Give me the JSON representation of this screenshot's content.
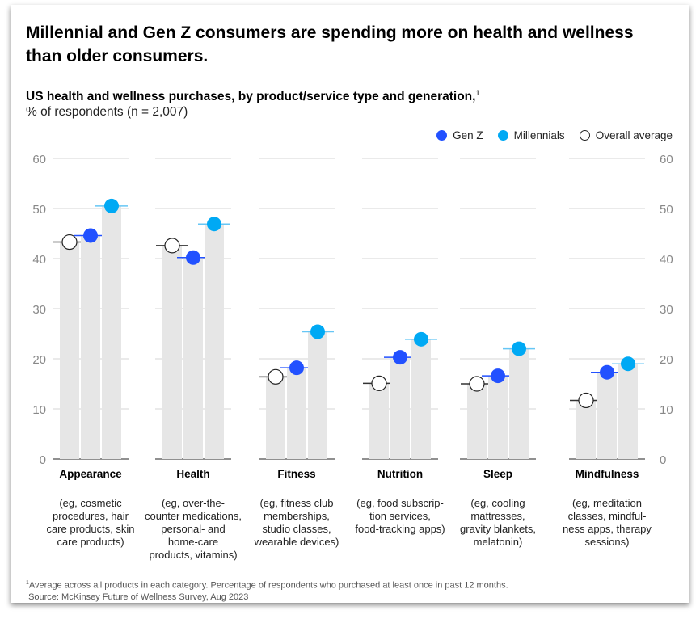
{
  "title": "Millennial and Gen Z consumers are spending more on health and wellness than older consumers.",
  "subtitle": "US health and wellness purchases, by product/service type and generation,",
  "subtitle_note": "1",
  "unit": "% of respondents (n = 2,007)",
  "footnote_mark": "1",
  "footnote": "Average across all products in each category. Percentage of respondents who purchased at least once in past 12 months.",
  "source": "Source: McKinsey Future of Wellness Survey, Aug 2023",
  "chart_data": {
    "type": "bar",
    "categories": [
      "Appearance",
      "Health",
      "Fitness",
      "Nutrition",
      "Sleep",
      "Mindfulness"
    ],
    "descriptions": [
      [
        "(eg, cosmetic",
        "procedures, hair",
        "care products, skin",
        "care products)"
      ],
      [
        "(eg, over-the-",
        "counter medications,",
        "personal- and",
        "home-care",
        "products, vitamins)"
      ],
      [
        "(eg, fitness club",
        "memberships,",
        "studio classes,",
        "wearable devices)"
      ],
      [
        "(eg, food subscrip-",
        "tion services,",
        "food-tracking apps)"
      ],
      [
        "(eg, cooling",
        "mattresses,",
        "gravity blankets,",
        "melatonin)"
      ],
      [
        "(eg, meditation",
        "classes, mindful-",
        "ness apps, therapy",
        "sessions)"
      ]
    ],
    "series": [
      {
        "name": "Overall average",
        "values": [
          43.3,
          42.6,
          16.4,
          15.1,
          15.0,
          11.7
        ],
        "color": "#ffffff",
        "line": "#333333"
      },
      {
        "name": "Gen Z",
        "values": [
          44.6,
          40.2,
          18.2,
          20.3,
          16.6,
          17.3
        ],
        "color": "#2251ff",
        "line": "#2251ff"
      },
      {
        "name": "Millennials",
        "values": [
          50.5,
          46.9,
          25.4,
          23.9,
          22.0,
          19.0
        ],
        "color": "#00a9f4",
        "line": "#66c6f5"
      }
    ],
    "legend_order": [
      "Gen Z",
      "Millennials",
      "Overall average"
    ],
    "legend_placement": "top-right",
    "ylim": [
      0,
      60
    ],
    "yticks": [
      0,
      10,
      20,
      30,
      40,
      50,
      60
    ],
    "grid": true,
    "bar_color": "#e6e6e6"
  }
}
